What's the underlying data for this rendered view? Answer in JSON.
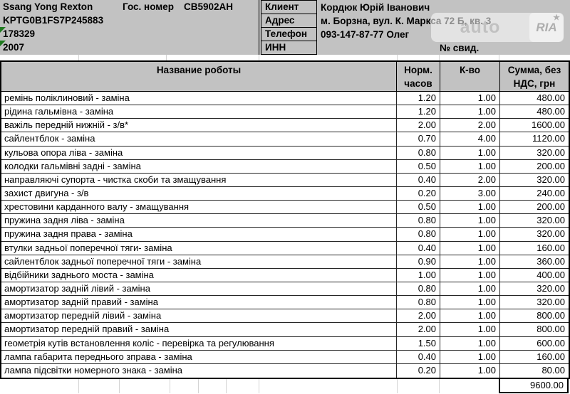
{
  "vehicle": {
    "model": "Ssang Yong Rexton",
    "plate_label": "Гос. номер",
    "plate": "CB5902АН",
    "vin": "KPTG0B1FS7P245883",
    "mileage": "178329",
    "year": "2007"
  },
  "client": {
    "rows": [
      {
        "label": "Клиент",
        "value": "Кордюк Юрій Іванович"
      },
      {
        "label": "Адрес",
        "value": "м. Борзна, вул. К. Маркса 72 Б, кв. 3"
      },
      {
        "label": "Телефон",
        "value": "093-147-87-77 Олег"
      },
      {
        "label": "ИНН",
        "value": ""
      }
    ],
    "cert_label": "№ свид."
  },
  "watermark": {
    "auto": "auto",
    "ria": "RIA",
    "star": "★"
  },
  "table": {
    "header": {
      "name": "Название роботы",
      "hours": "Норм. часов",
      "qty": "К-во",
      "sum": "Сумма, без НДС, грн"
    },
    "rows": [
      {
        "name": "ремінь поліклиновий - заміна",
        "hours": "1.20",
        "qty": "1.00",
        "sum": "480.00"
      },
      {
        "name": "рідина гальмівна - заміна",
        "hours": "1.20",
        "qty": "1.00",
        "sum": "480.00"
      },
      {
        "name": "важіль передній нижній - з/в*",
        "hours": "2.00",
        "qty": "2.00",
        "sum": "1600.00"
      },
      {
        "name": "сайлентблок - заміна",
        "hours": "0.70",
        "qty": "4.00",
        "sum": "1120.00"
      },
      {
        "name": "кульова опора ліва - заміна",
        "hours": "0.80",
        "qty": "1.00",
        "sum": "320.00"
      },
      {
        "name": "колодки гальмівні задні - заміна",
        "hours": "0.50",
        "qty": "1.00",
        "sum": "200.00"
      },
      {
        "name": "направляючі супорта - чистка скоби та змащування",
        "hours": "0.40",
        "qty": "2.00",
        "sum": "320.00"
      },
      {
        "name": "захист двигуна - з/в",
        "hours": "0.20",
        "qty": "3.00",
        "sum": "240.00"
      },
      {
        "name": "хрестовини карданного валу - змащування",
        "hours": "0.50",
        "qty": "1.00",
        "sum": "200.00"
      },
      {
        "name": "пружина задня ліва - заміна",
        "hours": "0.80",
        "qty": "1.00",
        "sum": "320.00"
      },
      {
        "name": "пружина задня права - заміна",
        "hours": "0.80",
        "qty": "1.00",
        "sum": "320.00"
      },
      {
        "name": "втулки задньої поперечної тяги- заміна",
        "hours": "0.40",
        "qty": "1.00",
        "sum": "160.00"
      },
      {
        "name": "сайлентблок задньої поперечної тяги - заміна",
        "hours": "0.90",
        "qty": "1.00",
        "sum": "360.00"
      },
      {
        "name": "відбійники заднього моста - заміна",
        "hours": "1.00",
        "qty": "1.00",
        "sum": "400.00"
      },
      {
        "name": "амортизатор задній лівий - заміна",
        "hours": "0.80",
        "qty": "1.00",
        "sum": "320.00"
      },
      {
        "name": "амортизатор задній правий - заміна",
        "hours": "0.80",
        "qty": "1.00",
        "sum": "320.00"
      },
      {
        "name": "амортизатор передній лівий - заміна",
        "hours": "2.00",
        "qty": "1.00",
        "sum": "800.00"
      },
      {
        "name": "амортизатор передній правий - заміна",
        "hours": "2.00",
        "qty": "1.00",
        "sum": "800.00"
      },
      {
        "name": "геометрія кутів встановлення коліс - перевірка та регулювання",
        "hours": "1.50",
        "qty": "1.00",
        "sum": "600.00"
      },
      {
        "name": "лампа габарита переднього зправа - заміна",
        "hours": "0.40",
        "qty": "1.00",
        "sum": "160.00"
      },
      {
        "name": "лампа підсвітки номерного знака - заміна",
        "hours": "0.20",
        "qty": "1.00",
        "sum": "80.00"
      }
    ],
    "total": "9600.00"
  },
  "colors": {
    "panel_bg": "#c2c2c2",
    "flag_green": "#1f7a1f"
  }
}
